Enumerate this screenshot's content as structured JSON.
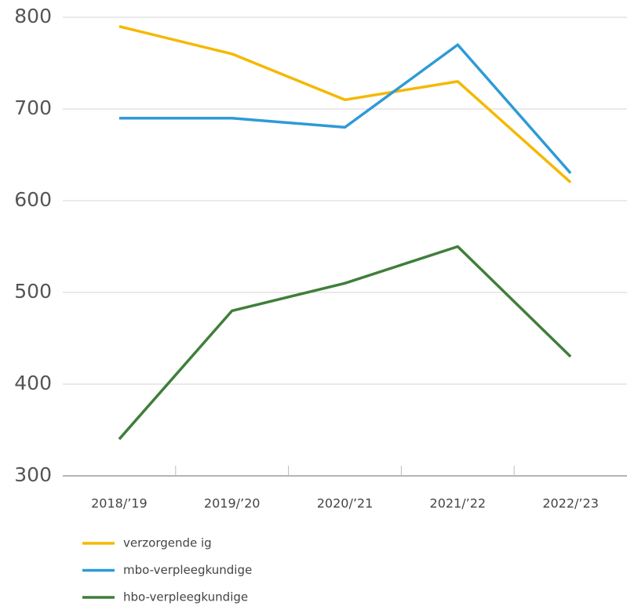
{
  "chart_data": {
    "type": "line",
    "categories": [
      "2018/’19",
      "2019/’20",
      "2020/’21",
      "2021/’22",
      "2022/’23"
    ],
    "series": [
      {
        "name": "verzorgende ig",
        "color": "#f5b800",
        "values": [
          790,
          760,
          710,
          730,
          620
        ]
      },
      {
        "name": "mbo-verpleegkundige",
        "color": "#2e9ad6",
        "values": [
          690,
          690,
          680,
          770,
          630
        ]
      },
      {
        "name": "hbo-verpleegkundige",
        "color": "#3f7f3a",
        "values": [
          340,
          480,
          510,
          550,
          430
        ]
      }
    ],
    "ylim": [
      300,
      800
    ],
    "yticks": [
      300,
      400,
      500,
      600,
      700,
      800
    ],
    "grid": true,
    "legend": "bottom"
  }
}
